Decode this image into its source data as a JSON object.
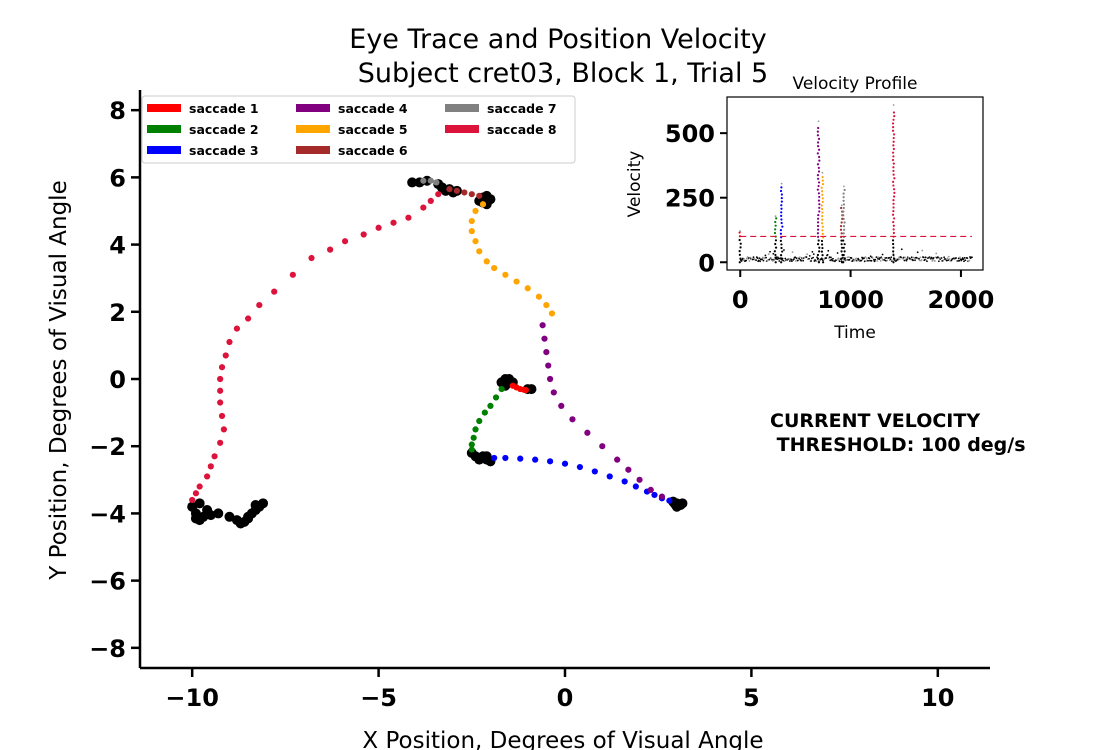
{
  "chart_data": [
    {
      "type": "scatter",
      "title": "Eye Trace and Position Velocity",
      "subtitle": "Subject cret03, Block 1, Trial 5",
      "xlabel": "X Position, Degrees of Visual Angle",
      "ylabel": "Y Position, Degrees of Visual Angle",
      "xlim": [
        -11.4,
        11.4
      ],
      "ylim": [
        -8.6,
        8.6
      ],
      "xticks": [
        -10,
        -5,
        0,
        5,
        10
      ],
      "xtick_labels": [
        "−10",
        "−5",
        "0",
        "5",
        "10"
      ],
      "yticks": [
        -8,
        -6,
        -4,
        -2,
        0,
        2,
        4,
        6,
        8
      ],
      "ytick_labels": [
        "−8",
        "−6",
        "−4",
        "−2",
        "0",
        "2",
        "4",
        "6",
        "8"
      ],
      "legend_placement": "top-left",
      "annotation": [
        "CURRENT VELOCITY",
        " THRESHOLD: 100 deg/s"
      ],
      "fixation": {
        "color": "#000000",
        "clusters": [
          {
            "x": [
              -1.7,
              -1.6,
              -1.5,
              -1.5,
              -1.6,
              -1.7,
              -1.6,
              -1.4,
              -1.0,
              -0.9
            ],
            "y": [
              -0.1,
              0.0,
              0.0,
              -0.1,
              -0.2,
              -0.1,
              -0.05,
              -0.1,
              -0.3,
              -0.3
            ]
          },
          {
            "x": [
              -2.5,
              -2.4,
              -2.3,
              -2.2,
              -2.1,
              -2.0,
              -2.3,
              -2.1
            ],
            "y": [
              -2.2,
              -2.3,
              -2.4,
              -2.3,
              -2.4,
              -2.45,
              -2.35,
              -2.3
            ]
          },
          {
            "x": [
              2.9,
              3.0,
              3.1,
              3.15,
              3.0,
              2.95
            ],
            "y": [
              -3.65,
              -3.7,
              -3.75,
              -3.7,
              -3.8,
              -3.72
            ]
          },
          {
            "x": [
              -4.1,
              -3.9,
              -3.7,
              -3.4,
              -3.3,
              -3.2,
              -3.1,
              -3.0,
              -2.9,
              -3.3
            ],
            "y": [
              5.85,
              5.85,
              5.9,
              5.8,
              5.7,
              5.6,
              5.65,
              5.55,
              5.6,
              5.7
            ]
          },
          {
            "x": [
              -2.3,
              -2.2,
              -2.1,
              -2.0,
              -2.1,
              -2.2
            ],
            "y": [
              5.3,
              5.4,
              5.2,
              5.35,
              5.45,
              5.25
            ]
          },
          {
            "x": [
              -10.0,
              -9.9,
              -9.8,
              -9.7,
              -9.6,
              -9.5,
              -9.3,
              -9.0,
              -8.8,
              -8.6,
              -8.5,
              -8.4,
              -8.3,
              -8.2,
              -8.1,
              -8.3,
              -8.5,
              -8.7,
              -9.9,
              -9.8
            ],
            "y": [
              -3.8,
              -4.0,
              -4.2,
              -4.1,
              -3.9,
              -4.05,
              -4.0,
              -4.1,
              -4.2,
              -4.25,
              -4.1,
              -4.0,
              -3.9,
              -3.8,
              -3.7,
              -3.75,
              -4.15,
              -4.3,
              -4.15,
              -3.7
            ]
          }
        ]
      },
      "series": [
        {
          "name": "saccade  1",
          "color": "#ff0000",
          "x": [
            -1.4,
            -1.3,
            -1.2,
            -1.1,
            -1.05
          ],
          "y": [
            -0.2,
            -0.25,
            -0.3,
            -0.32,
            -0.33
          ]
        },
        {
          "name": "saccade  2",
          "color": "#008000",
          "x": [
            -1.7,
            -1.85,
            -2.0,
            -2.15,
            -2.3,
            -2.4,
            -2.45,
            -2.5,
            -2.5
          ],
          "y": [
            -0.3,
            -0.55,
            -0.8,
            -1.0,
            -1.25,
            -1.5,
            -1.75,
            -1.95,
            -2.1
          ]
        },
        {
          "name": "saccade  3",
          "color": "#0000ff",
          "x": [
            -1.9,
            -1.6,
            -1.2,
            -0.8,
            -0.4,
            0.0,
            0.4,
            0.8,
            1.2,
            1.6,
            1.9,
            2.2,
            2.4,
            2.6,
            2.8
          ],
          "y": [
            -2.35,
            -2.35,
            -2.37,
            -2.4,
            -2.45,
            -2.52,
            -2.62,
            -2.75,
            -2.9,
            -3.05,
            -3.2,
            -3.35,
            -3.45,
            -3.55,
            -3.62
          ]
        },
        {
          "name": "saccade  4",
          "color": "#800080",
          "x": [
            -0.6,
            -0.55,
            -0.5,
            -0.45,
            -0.4,
            -0.3,
            -0.1,
            0.2,
            0.6,
            1.0,
            1.4,
            1.7,
            2.0,
            2.3,
            2.6
          ],
          "y": [
            1.6,
            1.2,
            0.8,
            0.4,
            0.0,
            -0.4,
            -0.8,
            -1.2,
            -1.6,
            -2.0,
            -2.4,
            -2.7,
            -3.0,
            -3.3,
            -3.5
          ]
        },
        {
          "name": "saccade  5",
          "color": "#ffa500",
          "x": [
            -2.2,
            -2.4,
            -2.5,
            -2.5,
            -2.4,
            -2.3,
            -2.1,
            -1.9,
            -1.6,
            -1.3,
            -1.0,
            -0.7,
            -0.5,
            -0.35
          ],
          "y": [
            5.2,
            5.0,
            4.7,
            4.4,
            4.1,
            3.8,
            3.5,
            3.3,
            3.1,
            2.9,
            2.7,
            2.45,
            2.2,
            1.95
          ]
        },
        {
          "name": "saccade  6",
          "color": "#a52a2a",
          "x": [
            -3.1,
            -2.9,
            -2.7,
            -2.5,
            -2.3
          ],
          "y": [
            5.65,
            5.6,
            5.55,
            5.5,
            5.45
          ]
        },
        {
          "name": "saccade  7",
          "color": "#808080",
          "x": [
            -3.8,
            -3.6,
            -3.45
          ],
          "y": [
            5.9,
            5.9,
            5.85
          ]
        },
        {
          "name": "saccade  8",
          "color": "#dc143c",
          "x": [
            -3.4,
            -3.6,
            -3.8,
            -4.2,
            -4.6,
            -5.0,
            -5.4,
            -5.9,
            -6.3,
            -6.8,
            -7.3,
            -7.8,
            -8.2,
            -8.5,
            -8.8,
            -9.0,
            -9.1,
            -9.2,
            -9.25,
            -9.25,
            -9.25,
            -9.2,
            -9.15,
            -9.25,
            -9.4,
            -9.5,
            -9.6,
            -9.8,
            -9.9,
            -10.0
          ],
          "y": [
            5.5,
            5.3,
            5.1,
            4.8,
            4.65,
            4.5,
            4.3,
            4.1,
            3.85,
            3.6,
            3.1,
            2.6,
            2.2,
            1.8,
            1.5,
            1.1,
            0.7,
            0.35,
            0.0,
            -0.35,
            -0.7,
            -1.1,
            -1.5,
            -1.9,
            -2.3,
            -2.6,
            -2.9,
            -3.2,
            -3.4,
            -3.6
          ]
        }
      ]
    },
    {
      "type": "scatter",
      "title": "Velocity Profile",
      "xlabel": "Time",
      "ylabel": "Velocity",
      "xlim": [
        -120,
        2200
      ],
      "ylim": [
        -30,
        640
      ],
      "xticks": [
        0,
        1000,
        2000
      ],
      "xtick_labels": [
        "0",
        "1000",
        "2000"
      ],
      "yticks": [
        0,
        250,
        500
      ],
      "ytick_labels": [
        "0",
        "250",
        "500"
      ],
      "threshold": {
        "value": 100,
        "color": "#dc143c",
        "style": "dashed"
      },
      "baseline": {
        "color": "#000000",
        "range": [
          0,
          2100
        ],
        "typical": 12,
        "max": 40
      },
      "peaks": [
        {
          "series": "saccade  1",
          "color": "#ff0000",
          "t": 0,
          "peak": 115
        },
        {
          "series": "saccade  2",
          "color": "#008000",
          "t": 320,
          "peak": 170
        },
        {
          "series": "saccade  3",
          "color": "#0000ff",
          "t": 375,
          "peak": 290
        },
        {
          "series": "saccade  4",
          "color": "#800080",
          "t": 710,
          "peak": 520
        },
        {
          "series": "saccade  5",
          "color": "#ffa500",
          "t": 745,
          "peak": 330
        },
        {
          "series": "saccade  6",
          "color": "#a52a2a",
          "t": 920,
          "peak": 210
        },
        {
          "series": "saccade  7",
          "color": "#808080",
          "t": 940,
          "peak": 280
        },
        {
          "series": "saccade  8",
          "color": "#dc143c",
          "t": 1390,
          "peak": 580
        }
      ]
    }
  ]
}
